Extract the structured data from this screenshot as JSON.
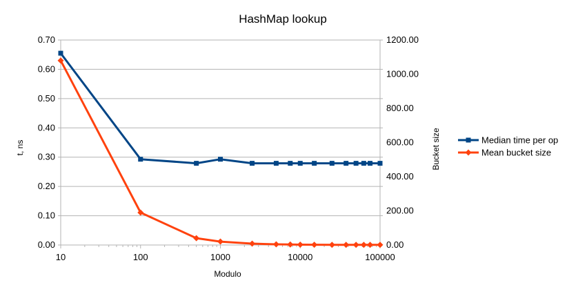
{
  "chart_data": {
    "type": "line",
    "title": "HashMap lookup",
    "xlabel": "Modulo",
    "ylabel": "t, ns",
    "y2label": "Bucket size",
    "x_scale": "log",
    "xlim": [
      10,
      100000
    ],
    "x_ticks": [
      "10",
      "100",
      "1000",
      "10000",
      "100000"
    ],
    "ylim": [
      0,
      0.7
    ],
    "y_ticks": [
      "0.00",
      "0.10",
      "0.20",
      "0.30",
      "0.40",
      "0.50",
      "0.60",
      "0.70"
    ],
    "y2lim": [
      0,
      1200
    ],
    "y2_ticks": [
      "0.00",
      "200.00",
      "400.00",
      "600.00",
      "800.00",
      "1000.00",
      "1200.00"
    ],
    "grid": "horizontal",
    "legend_position": "right",
    "x": [
      10,
      100,
      500,
      1000,
      2500,
      5000,
      7500,
      10000,
      15000,
      25000,
      37500,
      50000,
      62500,
      75000,
      100000
    ],
    "series": [
      {
        "name": "Median time per op",
        "axis": "left",
        "color": "#004586",
        "marker": "square",
        "values": [
          0.655,
          0.293,
          0.279,
          0.293,
          0.279,
          0.279,
          0.279,
          0.279,
          0.279,
          0.279,
          0.279,
          0.279,
          0.279,
          0.279,
          0.279
        ]
      },
      {
        "name": "Mean bucket size",
        "axis": "right",
        "color": "#ff420e",
        "marker": "diamond",
        "values": [
          1080,
          190,
          40,
          20,
          8,
          4,
          3,
          2,
          1.5,
          1,
          1,
          1,
          1,
          1,
          1
        ]
      }
    ]
  }
}
